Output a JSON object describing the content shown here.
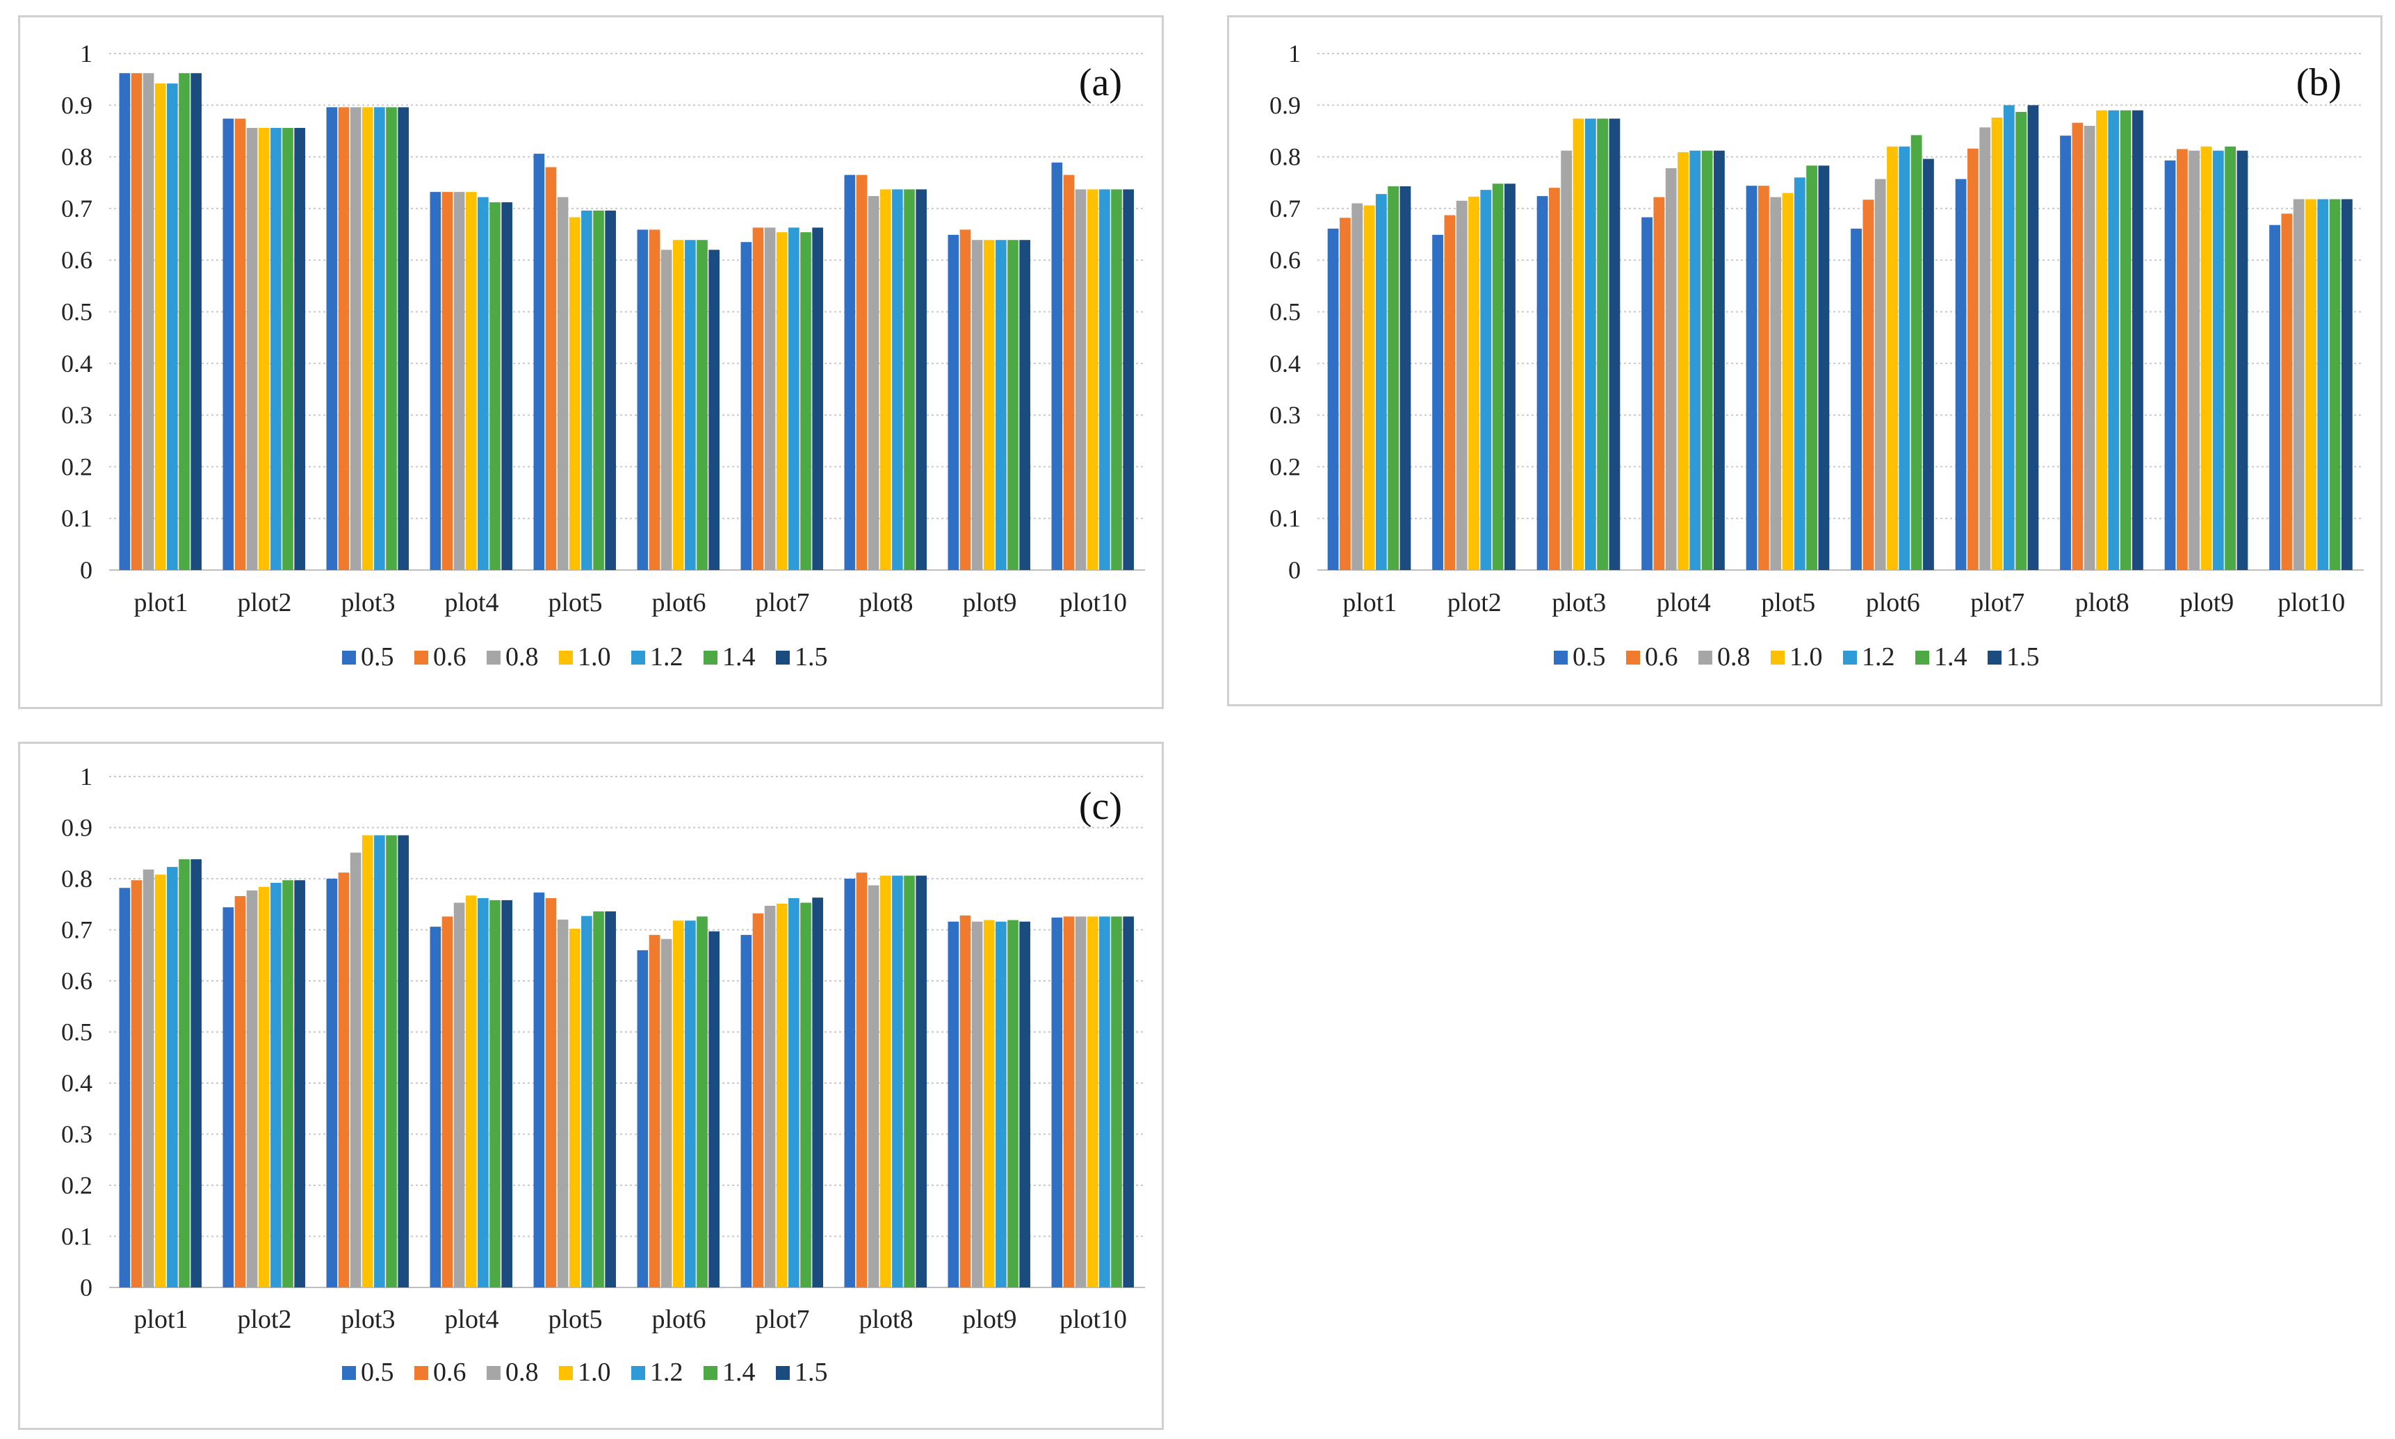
{
  "chart_data": [
    {
      "type": "bar",
      "panel_label": "(a)",
      "categories": [
        "plot1",
        "plot2",
        "plot3",
        "plot4",
        "plot5",
        "plot6",
        "plot7",
        "plot8",
        "plot9",
        "plot10"
      ],
      "series": [
        {
          "name": "0.5",
          "color": "#2F6FC4",
          "values": [
            0.962,
            0.874,
            0.896,
            0.732,
            0.806,
            0.659,
            0.635,
            0.765,
            0.649,
            0.789
          ]
        },
        {
          "name": "0.6",
          "color": "#F07A2D",
          "values": [
            0.962,
            0.874,
            0.896,
            0.732,
            0.78,
            0.659,
            0.663,
            0.765,
            0.659,
            0.765
          ]
        },
        {
          "name": "0.8",
          "color": "#A6A6A6",
          "values": [
            0.962,
            0.856,
            0.896,
            0.732,
            0.722,
            0.62,
            0.663,
            0.724,
            0.639,
            0.737
          ]
        },
        {
          "name": "1.0",
          "color": "#FFC000",
          "values": [
            0.942,
            0.856,
            0.896,
            0.732,
            0.683,
            0.639,
            0.654,
            0.737,
            0.639,
            0.737
          ]
        },
        {
          "name": "1.2",
          "color": "#2E9BD6",
          "values": [
            0.942,
            0.856,
            0.896,
            0.722,
            0.696,
            0.639,
            0.663,
            0.737,
            0.639,
            0.737
          ]
        },
        {
          "name": "1.4",
          "color": "#4DA944",
          "values": [
            0.962,
            0.856,
            0.896,
            0.712,
            0.696,
            0.639,
            0.654,
            0.737,
            0.639,
            0.737
          ]
        },
        {
          "name": "1.5",
          "color": "#1B4C80",
          "values": [
            0.962,
            0.856,
            0.896,
            0.712,
            0.696,
            0.62,
            0.663,
            0.737,
            0.639,
            0.737
          ]
        }
      ],
      "yticks": [
        "0",
        "0.1",
        "0.2",
        "0.3",
        "0.4",
        "0.5",
        "0.6",
        "0.7",
        "0.8",
        "0.9",
        "1"
      ],
      "ylim": [
        0,
        1
      ],
      "grid": true,
      "legend": "bottom"
    },
    {
      "type": "bar",
      "panel_label": "(b)",
      "categories": [
        "plot1",
        "plot2",
        "plot3",
        "plot4",
        "plot5",
        "plot6",
        "plot7",
        "plot8",
        "plot9",
        "plot10"
      ],
      "series": [
        {
          "name": "0.5",
          "color": "#2F6FC4",
          "values": [
            0.661,
            0.649,
            0.724,
            0.683,
            0.744,
            0.661,
            0.757,
            0.841,
            0.793,
            0.668
          ]
        },
        {
          "name": "0.6",
          "color": "#F07A2D",
          "values": [
            0.682,
            0.687,
            0.74,
            0.722,
            0.744,
            0.717,
            0.816,
            0.866,
            0.815,
            0.69
          ]
        },
        {
          "name": "0.8",
          "color": "#A6A6A6",
          "values": [
            0.71,
            0.715,
            0.812,
            0.778,
            0.722,
            0.757,
            0.857,
            0.86,
            0.812,
            0.718
          ]
        },
        {
          "name": "1.0",
          "color": "#FFC000",
          "values": [
            0.706,
            0.723,
            0.874,
            0.809,
            0.73,
            0.82,
            0.876,
            0.89,
            0.82,
            0.718
          ]
        },
        {
          "name": "1.2",
          "color": "#2E9BD6",
          "values": [
            0.728,
            0.736,
            0.874,
            0.812,
            0.76,
            0.82,
            0.9,
            0.89,
            0.812,
            0.718
          ]
        },
        {
          "name": "1.4",
          "color": "#4DA944",
          "values": [
            0.743,
            0.748,
            0.874,
            0.812,
            0.783,
            0.842,
            0.887,
            0.89,
            0.82,
            0.718
          ]
        },
        {
          "name": "1.5",
          "color": "#1B4C80",
          "values": [
            0.743,
            0.748,
            0.874,
            0.812,
            0.783,
            0.796,
            0.9,
            0.89,
            0.812,
            0.718
          ]
        }
      ],
      "yticks": [
        "0",
        "0.1",
        "0.2",
        "0.3",
        "0.4",
        "0.5",
        "0.6",
        "0.7",
        "0.8",
        "0.9",
        "1"
      ],
      "ylim": [
        0,
        1
      ],
      "grid": true,
      "legend": "bottom"
    },
    {
      "type": "bar",
      "panel_label": "(c)",
      "categories": [
        "plot1",
        "plot2",
        "plot3",
        "plot4",
        "plot5",
        "plot6",
        "plot7",
        "plot8",
        "plot9",
        "plot10"
      ],
      "series": [
        {
          "name": "0.5",
          "color": "#2F6FC4",
          "values": [
            0.782,
            0.744,
            0.8,
            0.706,
            0.773,
            0.66,
            0.69,
            0.8,
            0.716,
            0.724
          ]
        },
        {
          "name": "0.6",
          "color": "#F07A2D",
          "values": [
            0.797,
            0.766,
            0.812,
            0.726,
            0.762,
            0.69,
            0.732,
            0.812,
            0.728,
            0.726
          ]
        },
        {
          "name": "0.8",
          "color": "#A6A6A6",
          "values": [
            0.818,
            0.777,
            0.851,
            0.753,
            0.72,
            0.682,
            0.747,
            0.787,
            0.716,
            0.726
          ]
        },
        {
          "name": "1.0",
          "color": "#FFC000",
          "values": [
            0.808,
            0.784,
            0.885,
            0.767,
            0.702,
            0.718,
            0.751,
            0.806,
            0.719,
            0.726
          ]
        },
        {
          "name": "1.2",
          "color": "#2E9BD6",
          "values": [
            0.823,
            0.792,
            0.885,
            0.762,
            0.727,
            0.718,
            0.762,
            0.806,
            0.716,
            0.726
          ]
        },
        {
          "name": "1.4",
          "color": "#4DA944",
          "values": [
            0.838,
            0.797,
            0.885,
            0.758,
            0.736,
            0.726,
            0.753,
            0.806,
            0.719,
            0.726
          ]
        },
        {
          "name": "1.5",
          "color": "#1B4C80",
          "values": [
            0.838,
            0.797,
            0.885,
            0.758,
            0.736,
            0.697,
            0.763,
            0.806,
            0.716,
            0.726
          ]
        }
      ],
      "yticks": [
        "0",
        "0.1",
        "0.2",
        "0.3",
        "0.4",
        "0.5",
        "0.6",
        "0.7",
        "0.8",
        "0.9",
        "1"
      ],
      "ylim": [
        0,
        1
      ],
      "grid": true,
      "legend": "bottom"
    }
  ]
}
